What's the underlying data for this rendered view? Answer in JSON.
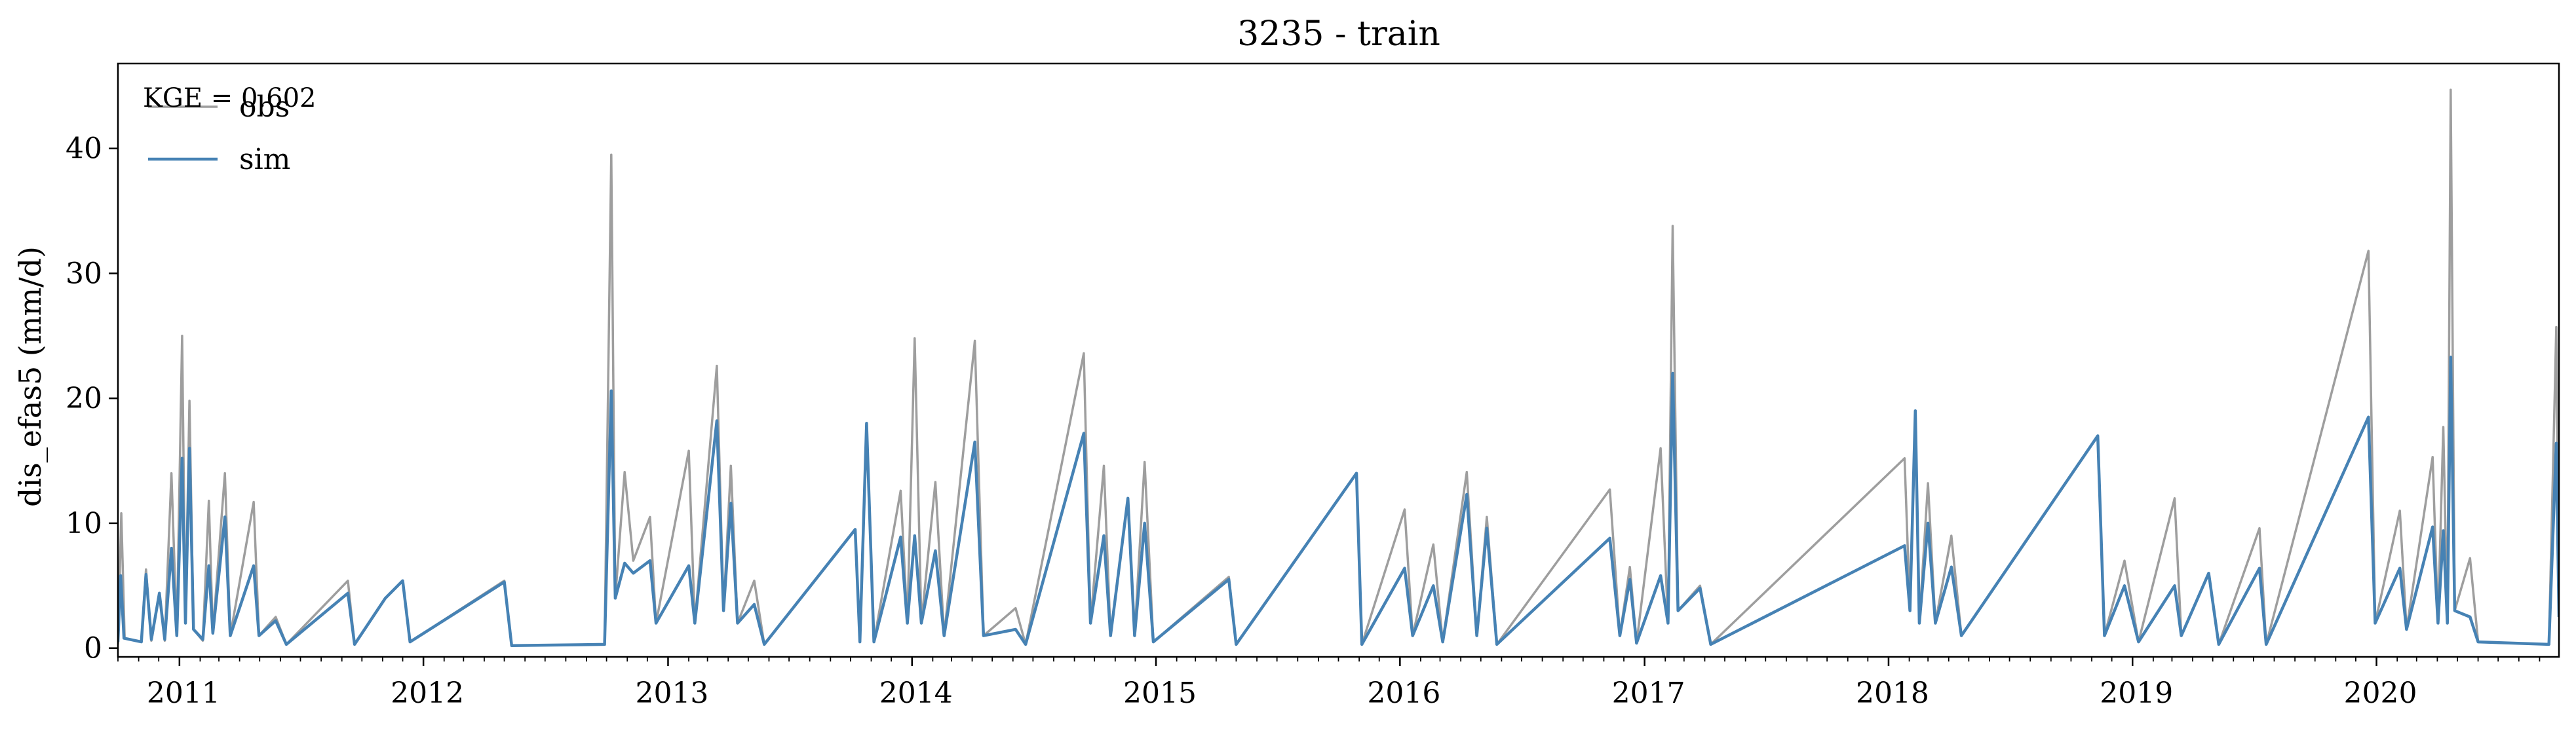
{
  "chart_data": {
    "type": "line",
    "title": "3235 - train",
    "xlabel": "",
    "ylabel": "dis_efas5 (mm/d)",
    "xlim": [
      "2010-10-01",
      "2020-09-30"
    ],
    "ylim": [
      -0.7,
      46.8
    ],
    "xticks": [
      {
        "date": "2011-01-01",
        "label": "2011"
      },
      {
        "date": "2012-01-01",
        "label": "2012"
      },
      {
        "date": "2013-01-01",
        "label": "2013"
      },
      {
        "date": "2014-01-01",
        "label": "2014"
      },
      {
        "date": "2015-01-01",
        "label": "2015"
      },
      {
        "date": "2016-01-01",
        "label": "2016"
      },
      {
        "date": "2017-01-01",
        "label": "2017"
      },
      {
        "date": "2018-01-01",
        "label": "2018"
      },
      {
        "date": "2019-01-01",
        "label": "2019"
      },
      {
        "date": "2020-01-01",
        "label": "2020"
      }
    ],
    "yticks": [
      0,
      10,
      20,
      30,
      40
    ],
    "grid": false,
    "legend_position": "top-left",
    "annotation": "KGE = 0.602",
    "series": [
      {
        "name": "obs",
        "color": "#9e9e9e",
        "points": [
          [
            "2010-10-01",
            0.3
          ],
          [
            "2010-10-06",
            10.8
          ],
          [
            "2010-10-11",
            0.8
          ],
          [
            "2010-11-05",
            0.5
          ],
          [
            "2010-11-12",
            6.3
          ],
          [
            "2010-11-20",
            0.6
          ],
          [
            "2010-12-02",
            4.4
          ],
          [
            "2010-12-10",
            0.6
          ],
          [
            "2010-12-20",
            14.0
          ],
          [
            "2010-12-28",
            1.0
          ],
          [
            "2011-01-05",
            25.0
          ],
          [
            "2011-01-10",
            2.0
          ],
          [
            "2011-01-16",
            19.8
          ],
          [
            "2011-01-22",
            1.5
          ],
          [
            "2011-02-05",
            0.6
          ],
          [
            "2011-02-14",
            11.8
          ],
          [
            "2011-02-20",
            1.2
          ],
          [
            "2011-03-10",
            14.0
          ],
          [
            "2011-03-18",
            1.0
          ],
          [
            "2011-04-22",
            11.7
          ],
          [
            "2011-04-30",
            1.0
          ],
          [
            "2011-05-25",
            2.5
          ],
          [
            "2011-06-10",
            0.3
          ],
          [
            "2011-09-10",
            5.4
          ],
          [
            "2011-09-20",
            0.3
          ],
          [
            "2011-11-05",
            4.0
          ],
          [
            "2011-12-01",
            5.4
          ],
          [
            "2011-12-12",
            0.5
          ],
          [
            "2012-05-01",
            5.4
          ],
          [
            "2012-05-12",
            0.2
          ],
          [
            "2012-09-28",
            0.3
          ],
          [
            "2012-10-08",
            39.5
          ],
          [
            "2012-10-14",
            4.0
          ],
          [
            "2012-10-28",
            14.1
          ],
          [
            "2012-11-10",
            7.0
          ],
          [
            "2012-12-05",
            10.5
          ],
          [
            "2012-12-14",
            2.0
          ],
          [
            "2013-02-01",
            15.8
          ],
          [
            "2013-02-10",
            2.0
          ],
          [
            "2013-03-15",
            22.6
          ],
          [
            "2013-03-25",
            3.0
          ],
          [
            "2013-04-05",
            14.6
          ],
          [
            "2013-04-15",
            2.0
          ],
          [
            "2013-05-10",
            5.4
          ],
          [
            "2013-05-25",
            0.3
          ],
          [
            "2013-10-08",
            9.5
          ],
          [
            "2013-10-15",
            0.5
          ],
          [
            "2013-10-25",
            18.0
          ],
          [
            "2013-11-05",
            0.5
          ],
          [
            "2013-12-15",
            12.6
          ],
          [
            "2013-12-25",
            2.0
          ],
          [
            "2014-01-05",
            24.8
          ],
          [
            "2014-01-15",
            2.0
          ],
          [
            "2014-02-05",
            13.3
          ],
          [
            "2014-02-18",
            1.0
          ],
          [
            "2014-04-05",
            24.6
          ],
          [
            "2014-04-18",
            1.0
          ],
          [
            "2014-06-05",
            3.2
          ],
          [
            "2014-06-20",
            0.3
          ],
          [
            "2014-09-15",
            23.6
          ],
          [
            "2014-09-25",
            2.0
          ],
          [
            "2014-10-15",
            14.6
          ],
          [
            "2014-10-25",
            1.0
          ],
          [
            "2014-11-20",
            12.0
          ],
          [
            "2014-11-30",
            1.0
          ],
          [
            "2014-12-15",
            14.9
          ],
          [
            "2014-12-28",
            0.5
          ],
          [
            "2015-04-20",
            5.7
          ],
          [
            "2015-05-01",
            0.3
          ],
          [
            "2015-10-28",
            14.0
          ],
          [
            "2015-11-05",
            0.3
          ],
          [
            "2016-01-08",
            11.1
          ],
          [
            "2016-01-20",
            1.0
          ],
          [
            "2016-02-20",
            8.3
          ],
          [
            "2016-03-05",
            0.5
          ],
          [
            "2016-04-10",
            14.1
          ],
          [
            "2016-04-25",
            1.0
          ],
          [
            "2016-05-10",
            10.5
          ],
          [
            "2016-05-25",
            0.3
          ],
          [
            "2016-11-10",
            12.7
          ],
          [
            "2016-11-25",
            1.0
          ],
          [
            "2016-12-10",
            6.5
          ],
          [
            "2016-12-20",
            0.4
          ],
          [
            "2017-01-25",
            16.0
          ],
          [
            "2017-02-05",
            2.0
          ],
          [
            "2017-02-12",
            33.8
          ],
          [
            "2017-02-20",
            3.0
          ],
          [
            "2017-03-25",
            5.0
          ],
          [
            "2017-04-10",
            0.3
          ],
          [
            "2018-01-25",
            15.2
          ],
          [
            "2018-02-02",
            3.0
          ],
          [
            "2018-02-10",
            19.0
          ],
          [
            "2018-02-16",
            2.0
          ],
          [
            "2018-03-01",
            13.2
          ],
          [
            "2018-03-12",
            2.0
          ],
          [
            "2018-04-05",
            9.0
          ],
          [
            "2018-04-20",
            1.0
          ],
          [
            "2018-11-10",
            17.0
          ],
          [
            "2018-11-20",
            1.0
          ],
          [
            "2018-12-20",
            7.0
          ],
          [
            "2019-01-10",
            0.5
          ],
          [
            "2019-03-05",
            12.0
          ],
          [
            "2019-03-15",
            1.0
          ],
          [
            "2019-04-25",
            6.0
          ],
          [
            "2019-05-10",
            0.3
          ],
          [
            "2019-07-10",
            9.6
          ],
          [
            "2019-07-20",
            0.3
          ],
          [
            "2019-12-20",
            31.8
          ],
          [
            "2019-12-30",
            2.0
          ],
          [
            "2020-02-05",
            11.0
          ],
          [
            "2020-02-15",
            1.5
          ],
          [
            "2020-03-25",
            15.3
          ],
          [
            "2020-04-02",
            2.0
          ],
          [
            "2020-04-10",
            17.7
          ],
          [
            "2020-04-16",
            2.0
          ],
          [
            "2020-04-21",
            44.7
          ],
          [
            "2020-04-27",
            3.0
          ],
          [
            "2020-05-20",
            7.2
          ],
          [
            "2020-06-01",
            0.5
          ],
          [
            "2020-09-15",
            0.3
          ],
          [
            "2020-09-26",
            25.7
          ],
          [
            "2020-09-30",
            3.0
          ]
        ]
      },
      {
        "name": "sim",
        "color": "#4682b4",
        "points": [
          [
            "2010-10-01",
            0.5
          ],
          [
            "2010-10-05",
            5.8
          ],
          [
            "2010-10-10",
            0.8
          ],
          [
            "2010-11-05",
            0.5
          ],
          [
            "2010-11-12",
            5.9
          ],
          [
            "2010-11-20",
            0.7
          ],
          [
            "2010-12-02",
            4.4
          ],
          [
            "2010-12-10",
            0.7
          ],
          [
            "2010-12-20",
            8.0
          ],
          [
            "2010-12-28",
            1.0
          ],
          [
            "2011-01-05",
            15.2
          ],
          [
            "2011-01-10",
            2.0
          ],
          [
            "2011-01-16",
            16.0
          ],
          [
            "2011-01-22",
            1.5
          ],
          [
            "2011-02-05",
            0.7
          ],
          [
            "2011-02-14",
            6.6
          ],
          [
            "2011-02-20",
            1.2
          ],
          [
            "2011-03-10",
            10.5
          ],
          [
            "2011-03-18",
            1.0
          ],
          [
            "2011-04-22",
            6.6
          ],
          [
            "2011-04-30",
            1.0
          ],
          [
            "2011-05-25",
            2.2
          ],
          [
            "2011-06-10",
            0.3
          ],
          [
            "2011-09-10",
            4.4
          ],
          [
            "2011-09-20",
            0.3
          ],
          [
            "2011-11-05",
            4.0
          ],
          [
            "2011-12-01",
            5.4
          ],
          [
            "2011-12-12",
            0.5
          ],
          [
            "2012-05-01",
            5.3
          ],
          [
            "2012-05-12",
            0.2
          ],
          [
            "2012-09-28",
            0.3
          ],
          [
            "2012-10-08",
            20.6
          ],
          [
            "2012-10-14",
            4.0
          ],
          [
            "2012-10-28",
            6.8
          ],
          [
            "2012-11-10",
            6.0
          ],
          [
            "2012-12-05",
            7.0
          ],
          [
            "2012-12-14",
            2.0
          ],
          [
            "2013-02-01",
            6.6
          ],
          [
            "2013-02-10",
            2.0
          ],
          [
            "2013-03-15",
            18.2
          ],
          [
            "2013-03-25",
            3.0
          ],
          [
            "2013-04-05",
            11.6
          ],
          [
            "2013-04-15",
            2.0
          ],
          [
            "2013-05-10",
            3.5
          ],
          [
            "2013-05-25",
            0.3
          ],
          [
            "2013-10-08",
            9.5
          ],
          [
            "2013-10-15",
            0.5
          ],
          [
            "2013-10-25",
            18.0
          ],
          [
            "2013-11-05",
            0.5
          ],
          [
            "2013-12-15",
            8.9
          ],
          [
            "2013-12-25",
            2.0
          ],
          [
            "2014-01-05",
            9.0
          ],
          [
            "2014-01-15",
            2.0
          ],
          [
            "2014-02-05",
            7.8
          ],
          [
            "2014-02-18",
            1.0
          ],
          [
            "2014-04-05",
            16.5
          ],
          [
            "2014-04-18",
            1.0
          ],
          [
            "2014-06-05",
            1.5
          ],
          [
            "2014-06-20",
            0.3
          ],
          [
            "2014-09-15",
            17.2
          ],
          [
            "2014-09-25",
            2.0
          ],
          [
            "2014-10-15",
            9.0
          ],
          [
            "2014-10-25",
            1.0
          ],
          [
            "2014-11-20",
            12.0
          ],
          [
            "2014-11-30",
            1.0
          ],
          [
            "2014-12-15",
            10.0
          ],
          [
            "2014-12-28",
            0.5
          ],
          [
            "2015-04-20",
            5.5
          ],
          [
            "2015-05-01",
            0.3
          ],
          [
            "2015-10-28",
            14.0
          ],
          [
            "2015-11-05",
            0.3
          ],
          [
            "2016-01-08",
            6.4
          ],
          [
            "2016-01-20",
            1.0
          ],
          [
            "2016-02-20",
            5.0
          ],
          [
            "2016-03-05",
            0.5
          ],
          [
            "2016-04-10",
            12.3
          ],
          [
            "2016-04-25",
            1.0
          ],
          [
            "2016-05-10",
            9.6
          ],
          [
            "2016-05-25",
            0.3
          ],
          [
            "2016-11-10",
            8.8
          ],
          [
            "2016-11-25",
            1.0
          ],
          [
            "2016-12-10",
            5.5
          ],
          [
            "2016-12-20",
            0.4
          ],
          [
            "2017-01-25",
            5.8
          ],
          [
            "2017-02-05",
            2.0
          ],
          [
            "2017-02-12",
            22.0
          ],
          [
            "2017-02-20",
            3.0
          ],
          [
            "2017-03-25",
            4.8
          ],
          [
            "2017-04-10",
            0.3
          ],
          [
            "2018-01-25",
            8.2
          ],
          [
            "2018-02-02",
            3.0
          ],
          [
            "2018-02-10",
            19.0
          ],
          [
            "2018-02-16",
            2.0
          ],
          [
            "2018-03-01",
            10.0
          ],
          [
            "2018-03-12",
            2.0
          ],
          [
            "2018-04-05",
            6.5
          ],
          [
            "2018-04-20",
            1.0
          ],
          [
            "2018-11-10",
            17.0
          ],
          [
            "2018-11-20",
            1.0
          ],
          [
            "2018-12-20",
            5.0
          ],
          [
            "2019-01-10",
            0.5
          ],
          [
            "2019-03-05",
            5.0
          ],
          [
            "2019-03-15",
            1.0
          ],
          [
            "2019-04-25",
            6.0
          ],
          [
            "2019-05-10",
            0.3
          ],
          [
            "2019-07-10",
            6.4
          ],
          [
            "2019-07-20",
            0.3
          ],
          [
            "2019-12-20",
            18.5
          ],
          [
            "2019-12-30",
            2.0
          ],
          [
            "2020-02-05",
            6.4
          ],
          [
            "2020-02-15",
            1.5
          ],
          [
            "2020-03-25",
            9.7
          ],
          [
            "2020-04-02",
            2.0
          ],
          [
            "2020-04-10",
            9.4
          ],
          [
            "2020-04-16",
            2.0
          ],
          [
            "2020-04-21",
            23.3
          ],
          [
            "2020-04-27",
            3.0
          ],
          [
            "2020-05-20",
            2.5
          ],
          [
            "2020-06-01",
            0.5
          ],
          [
            "2020-09-15",
            0.3
          ],
          [
            "2020-09-26",
            16.4
          ],
          [
            "2020-09-30",
            2.5
          ]
        ]
      }
    ]
  }
}
